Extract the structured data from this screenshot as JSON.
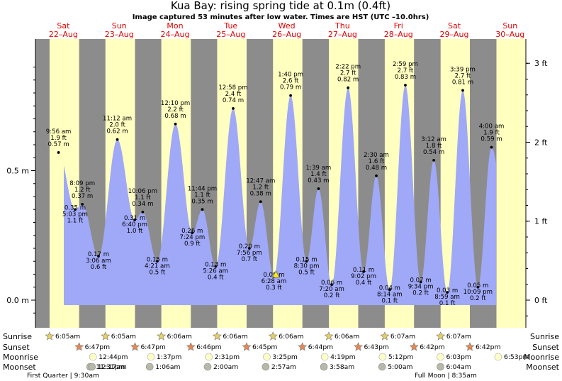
{
  "chart_data": {
    "type": "area",
    "title": "Kua Bay: rising  spring tide at 0.1m (0.4ft)",
    "subtitle": "Image captured 53 minutes after low water. Times are HST (UTC –10.0hrs)",
    "days": [
      {
        "dow": "Sat",
        "date": "22–Aug"
      },
      {
        "dow": "Sun",
        "date": "23–Aug"
      },
      {
        "dow": "Mon",
        "date": "24–Aug"
      },
      {
        "dow": "Tue",
        "date": "25–Aug"
      },
      {
        "dow": "Wed",
        "date": "26–Aug"
      },
      {
        "dow": "Thu",
        "date": "27–Aug"
      },
      {
        "dow": "Fri",
        "date": "28–Aug"
      },
      {
        "dow": "Sat",
        "date": "29–Aug"
      },
      {
        "dow": "Sun",
        "date": "30–Aug"
      }
    ],
    "y_axis_left": {
      "unit": "m",
      "ticks": [
        "0.0 m",
        "0.5 m"
      ],
      "tick_values": [
        0.0,
        0.5
      ]
    },
    "y_axis_right": {
      "unit": "ft",
      "ticks": [
        "0 ft",
        "1 ft",
        "2 ft",
        "3 ft"
      ],
      "tick_values": [
        0,
        1,
        2,
        3
      ]
    },
    "ylim_m": [
      -0.05,
      1.0
    ],
    "series": [
      {
        "points": [
          {
            "day": 0,
            "hour": 9.93,
            "time": "9:56 am",
            "ft": "1.9 ft",
            "m": 0.57,
            "type": "high"
          },
          {
            "day": 0,
            "hour": 17.05,
            "time": "5:03 pm",
            "ft": "1.1 ft",
            "m": 0.35,
            "type": "low"
          },
          {
            "day": 0,
            "hour": 20.15,
            "time": "8:09 pm",
            "ft": "1.2 ft",
            "m": 0.37,
            "type": "high"
          },
          {
            "day": 1,
            "hour": 3.1,
            "time": "3:06 am",
            "ft": "0.6 ft",
            "m": 0.17,
            "type": "low"
          },
          {
            "day": 1,
            "hour": 11.2,
            "time": "11:12 am",
            "ft": "2.0 ft",
            "m": 0.62,
            "type": "high"
          },
          {
            "day": 1,
            "hour": 18.67,
            "time": "6:40 pm",
            "ft": "1.0 ft",
            "m": 0.31,
            "type": "low"
          },
          {
            "day": 1,
            "hour": 22.1,
            "time": "10:06 pm",
            "ft": "1.1 ft",
            "m": 0.34,
            "type": "high"
          },
          {
            "day": 2,
            "hour": 4.35,
            "time": "4:21 am",
            "ft": "0.5 ft",
            "m": 0.15,
            "type": "low"
          },
          {
            "day": 2,
            "hour": 12.17,
            "time": "12:10 pm",
            "ft": "2.2 ft",
            "m": 0.68,
            "type": "high"
          },
          {
            "day": 2,
            "hour": 19.4,
            "time": "7:24 pm",
            "ft": "0.9 ft",
            "m": 0.26,
            "type": "low"
          },
          {
            "day": 2,
            "hour": 23.73,
            "time": "11:44 pm",
            "ft": "1.1 ft",
            "m": 0.35,
            "type": "high"
          },
          {
            "day": 3,
            "hour": 5.43,
            "time": "5:26 am",
            "ft": "0.4 ft",
            "m": 0.13,
            "type": "low"
          },
          {
            "day": 3,
            "hour": 12.97,
            "time": "12:58 pm",
            "ft": "2.4 ft",
            "m": 0.74,
            "type": "high"
          },
          {
            "day": 3,
            "hour": 19.93,
            "time": "7:56 pm",
            "ft": "0.7 ft",
            "m": 0.2,
            "type": "low"
          },
          {
            "day": 4,
            "hour": 0.78,
            "time": "12:47 am",
            "ft": "1.2 ft",
            "m": 0.38,
            "type": "high"
          },
          {
            "day": 4,
            "hour": 6.47,
            "time": "6:28 am",
            "ft": "0.3 ft",
            "m": 0.09,
            "type": "low"
          },
          {
            "day": 4,
            "hour": 13.67,
            "time": "1:40 pm",
            "ft": "2.6 ft",
            "m": 0.79,
            "type": "high"
          },
          {
            "day": 4,
            "hour": 20.5,
            "time": "8:30 pm",
            "ft": "0.5 ft",
            "m": 0.15,
            "type": "low"
          },
          {
            "day": 5,
            "hour": 1.65,
            "time": "1:39 am",
            "ft": "1.4 ft",
            "m": 0.43,
            "type": "high"
          },
          {
            "day": 5,
            "hour": 7.33,
            "time": "7:20 am",
            "ft": "0.2 ft",
            "m": 0.06,
            "type": "low"
          },
          {
            "day": 5,
            "hour": 14.37,
            "time": "2:22 pm",
            "ft": "2.7 ft",
            "m": 0.82,
            "type": "high"
          },
          {
            "day": 5,
            "hour": 21.03,
            "time": "9:02 pm",
            "ft": "0.4 ft",
            "m": 0.11,
            "type": "low"
          },
          {
            "day": 6,
            "hour": 2.5,
            "time": "2:30 am",
            "ft": "1.6 ft",
            "m": 0.48,
            "type": "high"
          },
          {
            "day": 6,
            "hour": 8.23,
            "time": "8:14 am",
            "ft": "0.1 ft",
            "m": 0.04,
            "type": "low"
          },
          {
            "day": 6,
            "hour": 14.98,
            "time": "2:59 pm",
            "ft": "2.7 ft",
            "m": 0.83,
            "type": "high"
          },
          {
            "day": 6,
            "hour": 21.57,
            "time": "9:34 pm",
            "ft": "0.2 ft",
            "m": 0.07,
            "type": "low"
          },
          {
            "day": 7,
            "hour": 3.2,
            "time": "3:12 am",
            "ft": "1.8 ft",
            "m": 0.54,
            "type": "high"
          },
          {
            "day": 7,
            "hour": 8.98,
            "time": "8:59 am",
            "ft": "0.1 ft",
            "m": 0.03,
            "type": "low"
          },
          {
            "day": 7,
            "hour": 15.65,
            "time": "3:39 pm",
            "ft": "2.7 ft",
            "m": 0.81,
            "type": "high"
          },
          {
            "day": 7,
            "hour": 22.15,
            "time": "10:09 pm",
            "ft": "0.2 ft",
            "m": 0.05,
            "type": "low"
          },
          {
            "day": 8,
            "hour": 4.0,
            "time": "4:00 am",
            "ft": "1.9 ft",
            "m": 0.59,
            "type": "high"
          }
        ]
      }
    ],
    "current_marker": {
      "day": 4,
      "hour": 7.35
    },
    "sunrise": [
      {
        "day": 0,
        "hour": 6.08,
        "time": "6:05am"
      },
      {
        "day": 1,
        "hour": 6.08,
        "time": "6:05am"
      },
      {
        "day": 2,
        "hour": 6.1,
        "time": "6:06am"
      },
      {
        "day": 3,
        "hour": 6.1,
        "time": "6:06am"
      },
      {
        "day": 4,
        "hour": 6.1,
        "time": "6:06am"
      },
      {
        "day": 5,
        "hour": 6.1,
        "time": "6:06am"
      },
      {
        "day": 6,
        "hour": 6.12,
        "time": "6:07am"
      },
      {
        "day": 7,
        "hour": 6.12,
        "time": "6:07am"
      }
    ],
    "sunset": [
      {
        "day": 0,
        "hour": 18.78,
        "time": "6:47pm"
      },
      {
        "day": 1,
        "hour": 18.78,
        "time": "6:47pm"
      },
      {
        "day": 2,
        "hour": 18.77,
        "time": "6:46pm"
      },
      {
        "day": 3,
        "hour": 18.75,
        "time": "6:45pm"
      },
      {
        "day": 4,
        "hour": 18.73,
        "time": "6:44pm"
      },
      {
        "day": 5,
        "hour": 18.72,
        "time": "6:43pm"
      },
      {
        "day": 6,
        "hour": 18.7,
        "time": "6:42pm"
      },
      {
        "day": 7,
        "hour": 18.7,
        "time": "6:42pm"
      }
    ],
    "moonrise": [
      {
        "day": 1,
        "hour": 0.73,
        "time": "12:44pm"
      },
      {
        "day": 2,
        "hour": 1.62,
        "time": "1:37pm"
      },
      {
        "day": 3,
        "hour": 2.52,
        "time": "2:31pm"
      },
      {
        "day": 4,
        "hour": 3.42,
        "time": "3:25pm"
      },
      {
        "day": 5,
        "hour": 4.32,
        "time": "4:19pm"
      },
      {
        "day": 6,
        "hour": 5.2,
        "time": "5:12pm"
      },
      {
        "day": 7,
        "hour": 6.05,
        "time": "6:03pm"
      },
      {
        "day": 8,
        "hour": 6.88,
        "time": "6:53pm"
      }
    ],
    "moonset": [
      {
        "day": 0,
        "hour": 23.52,
        "time": "11:31pm"
      },
      {
        "day": 1,
        "hour": 24.28,
        "time": "12:17am"
      },
      {
        "day": 2,
        "hour": 25.1,
        "time": "1:06am"
      },
      {
        "day": 3,
        "hour": 26.0,
        "time": "2:00am"
      },
      {
        "day": 4,
        "hour": 26.95,
        "time": "2:57am"
      },
      {
        "day": 5,
        "hour": 27.97,
        "time": "3:58am"
      },
      {
        "day": 6,
        "hour": 29.0,
        "time": "5:00am"
      },
      {
        "day": 7,
        "hour": 30.07,
        "time": "6:04am"
      }
    ],
    "moon_phases": [
      {
        "text": "First Quarter | 9:30am"
      },
      {
        "text": "Full Moon | 8:35am"
      }
    ],
    "almanac_labels": {
      "sunrise": "Sunrise",
      "sunset": "Sunset",
      "moonrise": "Moonrise",
      "moonset": "Moonset"
    },
    "colors": {
      "tide_fill": "#a0a8f8",
      "day_band": "#ffffc0",
      "night_band": "#8c8c8c",
      "day_header": "#e00000",
      "sunrise_star": "#e8d060",
      "sunset_star": "#e88850",
      "moonrise_disc": "#ffffc8",
      "moonset_disc": "#b8b8a8",
      "current_marker": "#ffee00"
    }
  }
}
